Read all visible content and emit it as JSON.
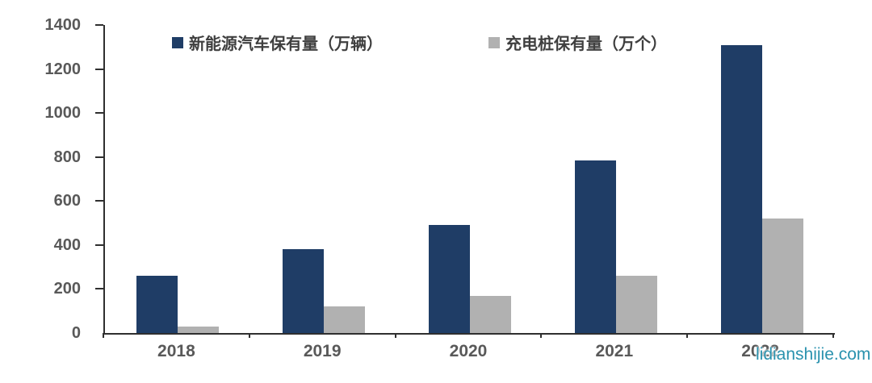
{
  "watermark": {
    "text": "lidianshijie.com",
    "color": "#2a92ae"
  },
  "axis_color": "#2f2f2f",
  "chart_data": {
    "type": "bar",
    "title": "",
    "xlabel": "",
    "ylabel": "",
    "categories": [
      "2018",
      "2019",
      "2020",
      "2021",
      "2022"
    ],
    "series": [
      {
        "name": "新能源汽车保有量（万辆）",
        "color": "#1f3d66",
        "values": [
          261,
          381,
          492,
          784,
          1310
        ]
      },
      {
        "name": "充电桩保有量（万个）",
        "color": "#b1b1b1",
        "values": [
          30,
          122,
          168,
          262,
          521
        ]
      }
    ],
    "ylim": [
      0,
      1400
    ],
    "yticks": [
      0,
      200,
      400,
      600,
      800,
      1000,
      1200,
      1400
    ],
    "legend_position": "top",
    "grid": false
  }
}
